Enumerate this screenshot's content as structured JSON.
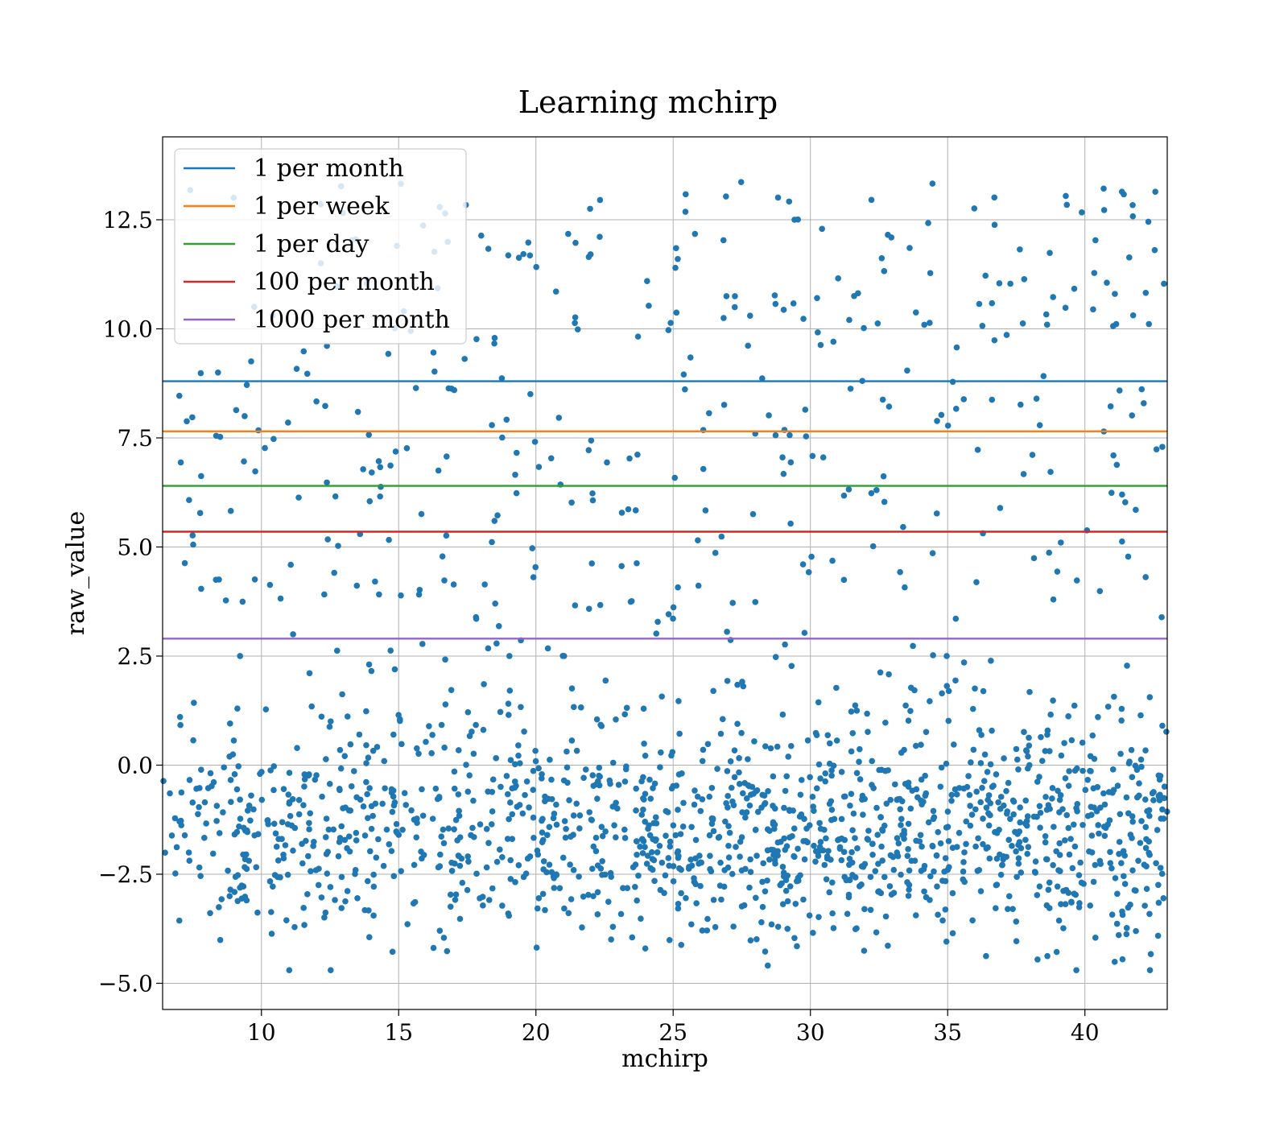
{
  "chart_data": {
    "type": "scatter",
    "title": "Learning mchirp",
    "xlabel": "mchirp",
    "ylabel": "raw_value",
    "xlim": [
      6.4,
      43.0
    ],
    "ylim": [
      -5.6,
      14.4
    ],
    "xticks": [
      10,
      15,
      20,
      25,
      30,
      35,
      40
    ],
    "yticks": [
      -5.0,
      -2.5,
      0.0,
      2.5,
      5.0,
      7.5,
      10.0,
      12.5
    ],
    "xtick_labels": [
      "10",
      "15",
      "20",
      "25",
      "30",
      "35",
      "40"
    ],
    "ytick_labels": [
      "−5.0",
      "−2.5",
      "0.0",
      "2.5",
      "5.0",
      "7.5",
      "10.0",
      "12.5"
    ],
    "grid": true,
    "legend_position": "upper-left",
    "scatter_color": "#1f77b4",
    "thresholds": [
      {
        "name": "1 per month",
        "y": 8.8,
        "color": "#1f77b4"
      },
      {
        "name": "1 per week",
        "y": 7.65,
        "color": "#ff7f0e"
      },
      {
        "name": "1 per day",
        "y": 6.4,
        "color": "#2ca02c"
      },
      {
        "name": "100 per month",
        "y": 5.35,
        "color": "#d62728"
      },
      {
        "name": "1000 per month",
        "y": 2.9,
        "color": "#9467bd"
      }
    ],
    "scatter": {
      "count": 1850,
      "dense_region": {
        "y_range": [
          -4.7,
          2.5
        ],
        "x_range": [
          6.4,
          43.0
        ]
      },
      "sparse_region": {
        "y_range": [
          2.5,
          13.4
        ],
        "x_range": [
          7.0,
          43.0
        ]
      }
    }
  }
}
